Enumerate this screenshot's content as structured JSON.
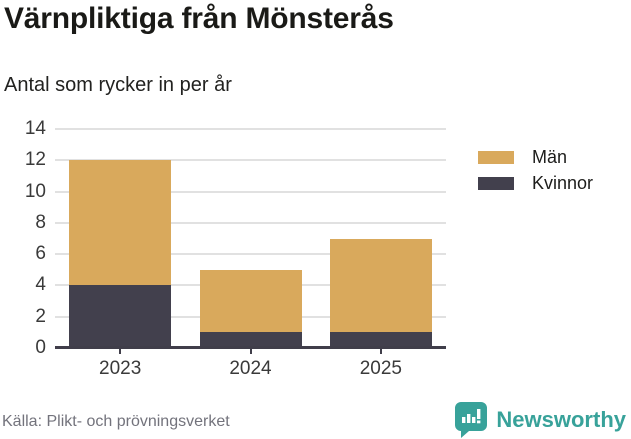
{
  "header": {
    "title": "Värnpliktiga från Mönsterås",
    "subtitle": "Antal som rycker in per år"
  },
  "chart_data": {
    "type": "bar",
    "stacked": true,
    "title": "Värnpliktiga från Mönsterås",
    "subtitle": "Antal som rycker in per år",
    "categories": [
      "2023",
      "2024",
      "2025"
    ],
    "series": [
      {
        "name": "Män",
        "color": "#d9a95c",
        "values": [
          8,
          4,
          6
        ]
      },
      {
        "name": "Kvinnor",
        "color": "#42404d",
        "values": [
          4,
          1,
          1
        ]
      }
    ],
    "stack_order_bottom_to_top": [
      "Kvinnor",
      "Män"
    ],
    "totals": [
      12,
      5,
      7
    ],
    "xlabel": "",
    "ylabel": "",
    "ylim": [
      0,
      14
    ],
    "yticks": [
      0,
      2,
      4,
      6,
      8,
      10,
      12,
      14
    ],
    "grid": true,
    "legend_position": "right"
  },
  "legend": {
    "items": [
      {
        "label": "Män",
        "color": "#d9a95c"
      },
      {
        "label": "Kvinnor",
        "color": "#42404d"
      }
    ]
  },
  "footer": {
    "source": "Källa: Plikt- och prövningsverket",
    "brand": "Newsworthy"
  },
  "colors": {
    "men": "#d9a95c",
    "women": "#42404d",
    "axis": "#403e4a",
    "gridline": "#e1e1e1",
    "brand_teal": "#38a29a",
    "source_text": "#73737c",
    "title_text": "#1a1a17"
  },
  "icons": {
    "brand_logo": "newsworthy-speech-bubble-barchart-icon"
  }
}
